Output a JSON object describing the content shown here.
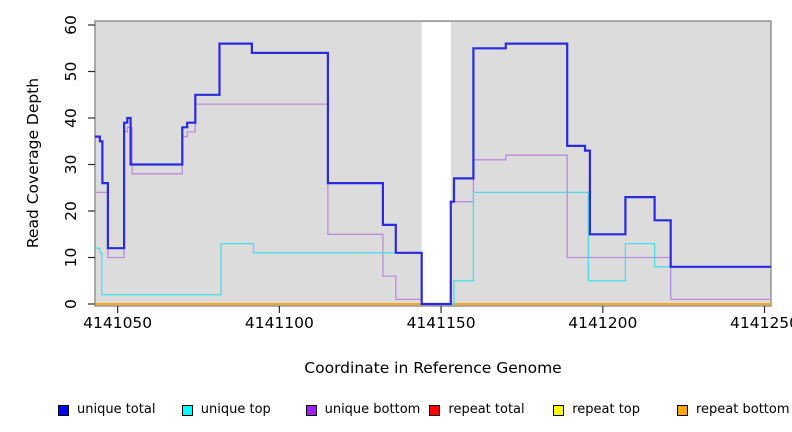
{
  "chart_data": {
    "type": "line",
    "step": true,
    "title": "",
    "xlabel": "Coordinate in Reference Genome",
    "ylabel": "Read Coverage Depth",
    "xlim": [
      4141043,
      4141252
    ],
    "ylim": [
      0,
      60
    ],
    "x_ticks": [
      4141050,
      4141100,
      4141150,
      4141200,
      4141250
    ],
    "y_ticks": [
      0,
      10,
      20,
      30,
      40,
      50,
      60
    ],
    "grid": false,
    "plot_background": "#DCDCDC",
    "plot_border": "#7d7d7d",
    "gap_region": {
      "from": 4141144,
      "to": 4141153,
      "fill": "#ffffff"
    },
    "legend_position": "bottom",
    "x_end": 4141252,
    "series": [
      {
        "name": "unique total",
        "color": "#2A2AE0",
        "width": 2.2,
        "points": [
          [
            4141043,
            36
          ],
          [
            4141044.5,
            35
          ],
          [
            4141045.3,
            26
          ],
          [
            4141047,
            12
          ],
          [
            4141052,
            39
          ],
          [
            4141053,
            40
          ],
          [
            4141054,
            30
          ],
          [
            4141070,
            38
          ],
          [
            4141071.5,
            39
          ],
          [
            4141074,
            45
          ],
          [
            4141081.5,
            56
          ],
          [
            4141091.5,
            54
          ],
          [
            4141115,
            26
          ],
          [
            4141132,
            17
          ],
          [
            4141136,
            11
          ],
          [
            4141144,
            0
          ],
          [
            4141153,
            22
          ],
          [
            4141154,
            27
          ],
          [
            4141160,
            55
          ],
          [
            4141170,
            56
          ],
          [
            4141189,
            34
          ],
          [
            4141194.5,
            33
          ],
          [
            4141196,
            15
          ],
          [
            4141207,
            23
          ],
          [
            4141216,
            18
          ],
          [
            4141221,
            8
          ]
        ]
      },
      {
        "name": "unique top",
        "color": "#49DFE8",
        "width": 1.3,
        "points": [
          [
            4141043,
            12
          ],
          [
            4141044.5,
            11
          ],
          [
            4141045.1,
            2
          ],
          [
            4141082,
            13
          ],
          [
            4141092,
            11
          ],
          [
            4141144,
            0
          ],
          [
            4141154,
            5
          ],
          [
            4141160,
            24
          ],
          [
            4141195.5,
            5
          ],
          [
            4141207,
            13
          ],
          [
            4141216,
            8
          ]
        ]
      },
      {
        "name": "unique bottom",
        "color": "#BD8BDD",
        "width": 1.3,
        "points": [
          [
            4141043,
            24
          ],
          [
            4141047,
            10
          ],
          [
            4141052,
            37
          ],
          [
            4141053,
            38
          ],
          [
            4141054.5,
            28
          ],
          [
            4141070,
            36
          ],
          [
            4141071.5,
            37
          ],
          [
            4141074,
            43
          ],
          [
            4141115,
            15
          ],
          [
            4141132,
            6
          ],
          [
            4141136,
            1
          ],
          [
            4141144,
            0
          ],
          [
            4141153,
            22
          ],
          [
            4141160,
            31
          ],
          [
            4141170,
            32
          ],
          [
            4141189,
            10
          ],
          [
            4141221,
            1
          ]
        ]
      },
      {
        "name": "repeat total",
        "color": "#DD2222",
        "width": 1.3,
        "points": [
          [
            4141043,
            0
          ]
        ]
      },
      {
        "name": "repeat top",
        "color": "#EFEF30",
        "width": 1.3,
        "points": [
          [
            4141043,
            0
          ]
        ]
      },
      {
        "name": "repeat bottom",
        "color": "#FFA500",
        "width": 1.7,
        "points": [
          [
            4141043,
            0
          ]
        ]
      }
    ]
  },
  "legend": {
    "items": [
      {
        "label": "unique total",
        "swatch": "#0000FF"
      },
      {
        "label": "unique top",
        "swatch": "#00FFFF"
      },
      {
        "label": "unique bottom",
        "swatch": "#A020F0"
      },
      {
        "label": "repeat total",
        "swatch": "#FF0000"
      },
      {
        "label": "repeat top",
        "swatch": "#FFFF00"
      },
      {
        "label": "repeat bottom",
        "swatch": "#FFA500"
      }
    ]
  }
}
